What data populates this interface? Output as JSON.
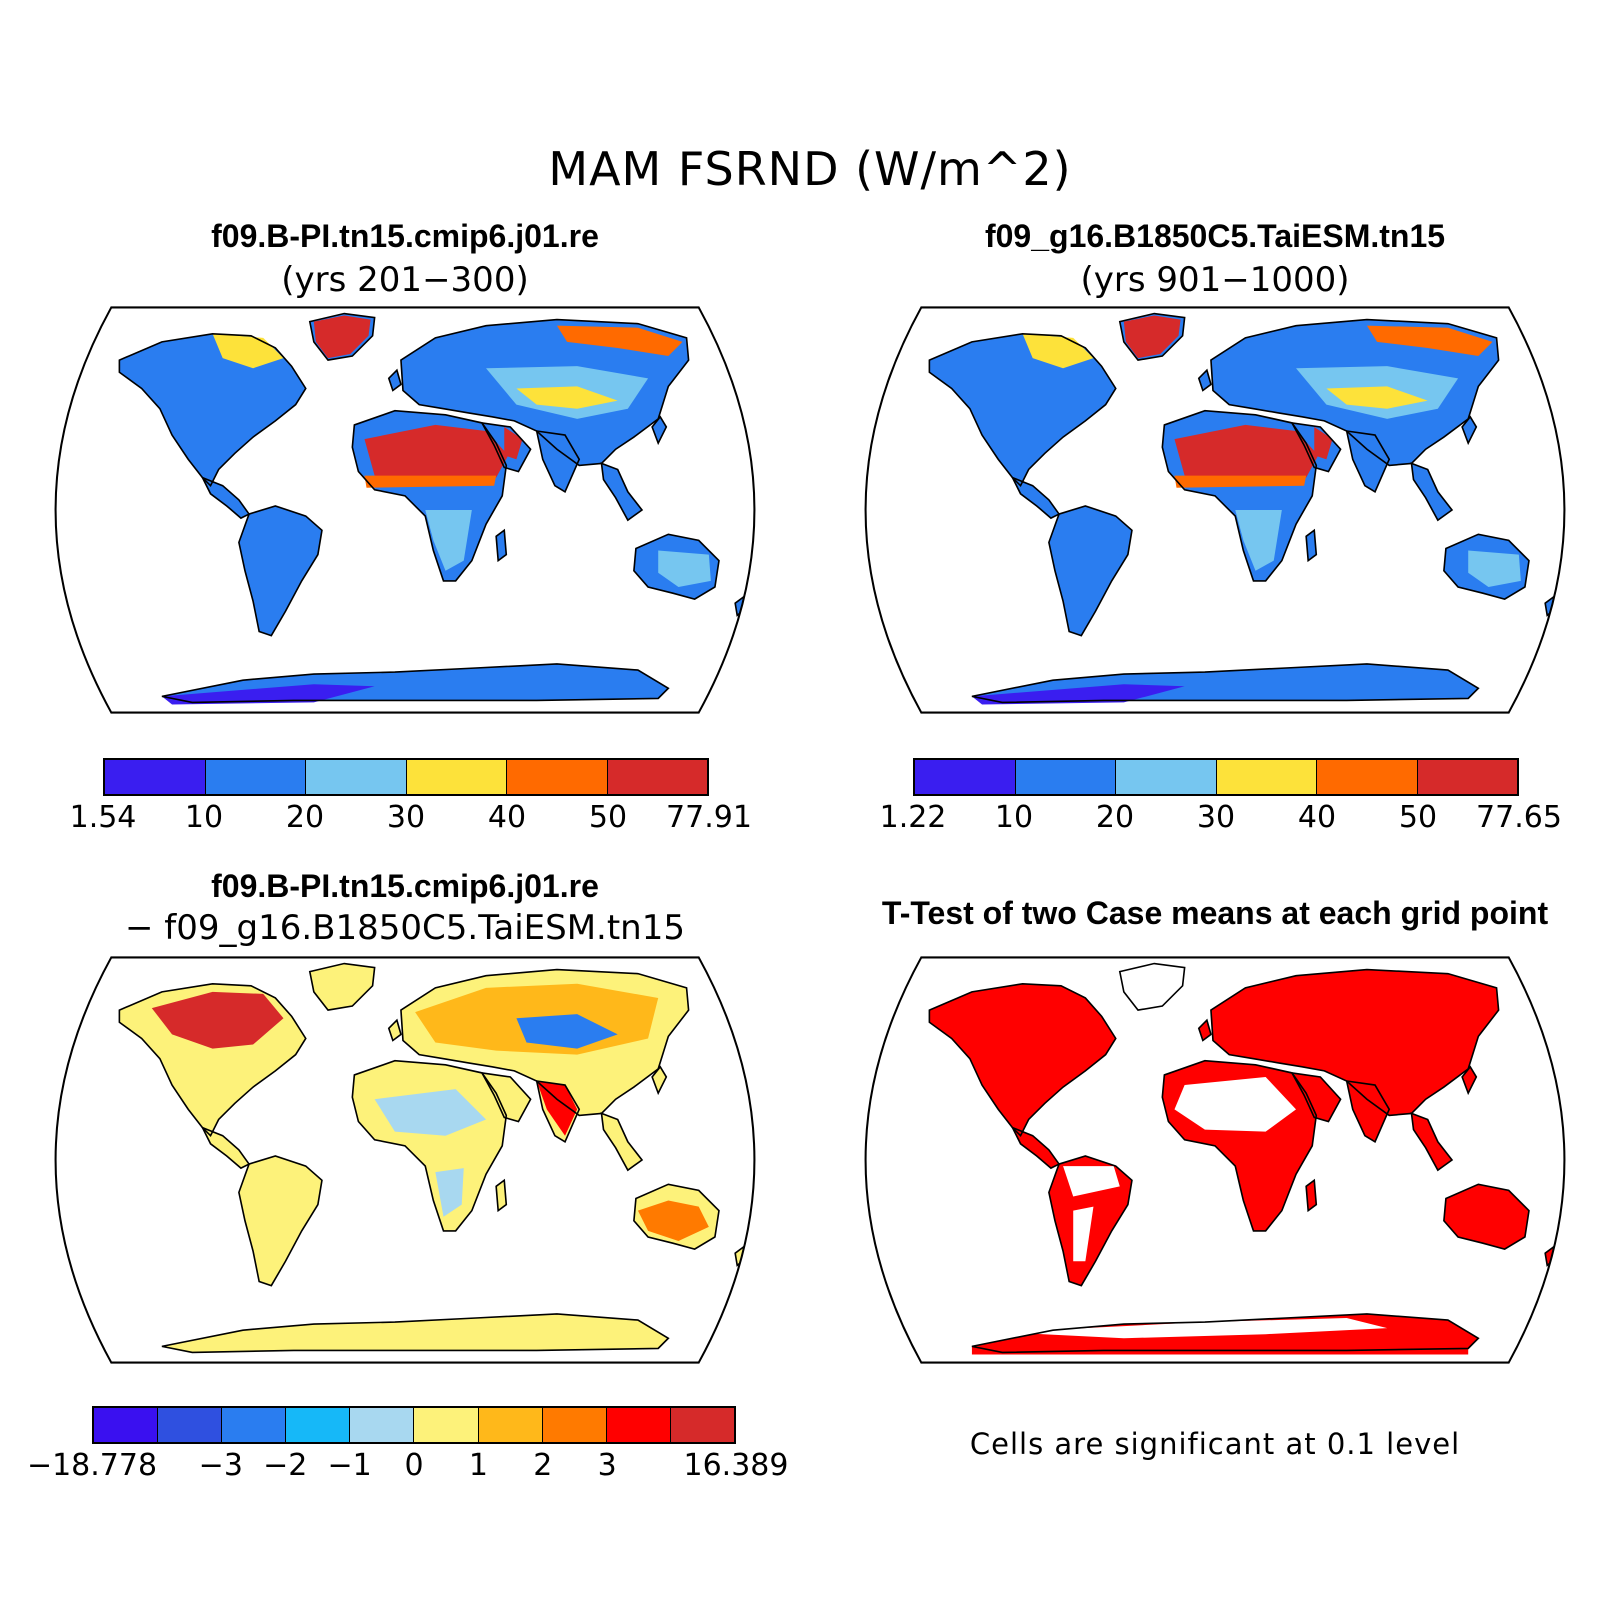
{
  "title": "MAM FSRND (W/m^2)",
  "panels": [
    {
      "id": "case1",
      "title": "f09.B-PI.tn15.cmip6.j01.re",
      "subtitle": "(yrs 201−300)"
    },
    {
      "id": "case2",
      "title": "f09_g16.B1850C5.TaiESM.tn15",
      "subtitle": "(yrs 901−1000)"
    },
    {
      "id": "diff",
      "title": "f09.B-PI.tn15.cmip6.j01.re",
      "subtitle": "− f09_g16.B1850C5.TaiESM.tn15"
    },
    {
      "id": "ttest",
      "title": "T-Test of two Case means at each grid point",
      "subtitle": ""
    }
  ],
  "colorbars": {
    "case1": {
      "colors": [
        "#3a1ef0",
        "#2a7df0",
        "#76c6f0",
        "#fde23a",
        "#ff6a00",
        "#d62a2a"
      ],
      "labels": [
        "1.54",
        "10",
        "20",
        "30",
        "40",
        "50",
        "77.91"
      ]
    },
    "case2": {
      "colors": [
        "#3a1ef0",
        "#2a7df0",
        "#76c6f0",
        "#fde23a",
        "#ff6a00",
        "#d62a2a"
      ],
      "labels": [
        "1.22",
        "10",
        "20",
        "30",
        "40",
        "50",
        "77.65"
      ]
    },
    "diff": {
      "colors": [
        "#3a10f0",
        "#2f50e0",
        "#2a7df0",
        "#16b8f8",
        "#a8d8f0",
        "#fdf27a",
        "#ffb81a",
        "#ff7a00",
        "#ff0000",
        "#d62a2a"
      ],
      "labels": [
        "−18.778",
        "",
        "−3",
        "−2",
        "−1",
        "0",
        "1",
        "2",
        "3",
        "",
        "16.389"
      ]
    }
  },
  "ttest_note": "Cells are significant at 0.1 level",
  "colors": {
    "ocean": "#ffffff",
    "land_base_case": "#2a7df0",
    "land_base_diff": "#fdf27a",
    "significant": "#ff0000"
  }
}
